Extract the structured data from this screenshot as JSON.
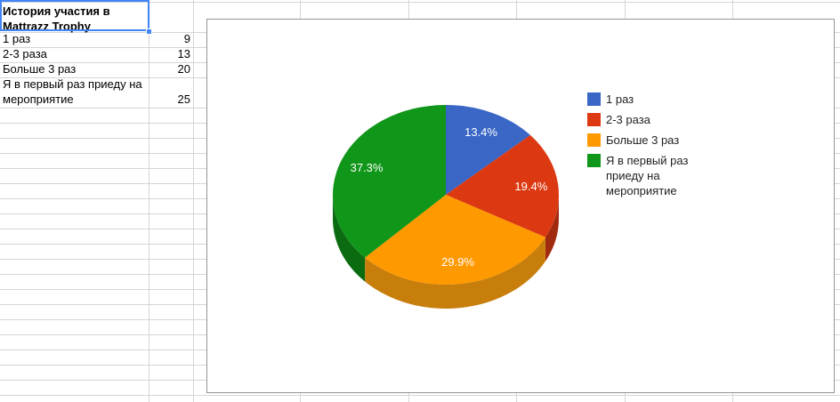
{
  "spreadsheet": {
    "title": "История участия в Mattrazz Trophy",
    "rows": [
      {
        "label": "1 раз",
        "value": "9"
      },
      {
        "label": "2-3 раза",
        "value": "13"
      },
      {
        "label": "Больше 3 раз",
        "value": "20"
      },
      {
        "label": "Я в первый раз приеду на мероприятие",
        "value": "25"
      }
    ]
  },
  "chart_data": {
    "type": "pie",
    "is_3d": true,
    "legend_position": "right",
    "labels": [
      "1 раз",
      "2-3 раза",
      "Больше 3 раз",
      "Я в первый раз приеду на мероприятие"
    ],
    "values": [
      9,
      13,
      20,
      25
    ],
    "percent_labels": [
      "13.4%",
      "19.4%",
      "29.9%",
      "37.3%"
    ],
    "colors": [
      "#3A66C6",
      "#DC3912",
      "#FF9900",
      "#109618"
    ],
    "side_colors": [
      "#2A4B94",
      "#A12B0E",
      "#C87E0A",
      "#0A6B10"
    ],
    "start_angle_deg": 0
  },
  "ui_colors": {
    "selection_blue": "#4285f4",
    "gridline": "#d5d5d5",
    "chart_border": "#949494"
  }
}
